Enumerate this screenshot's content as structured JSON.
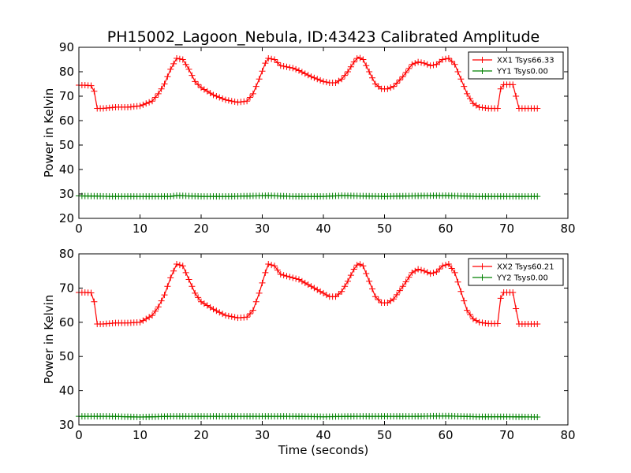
{
  "title": "PH15002_Lagoon_Nebula, ID:43423 Calibrated Amplitude",
  "colors": {
    "xx": "#ff0000",
    "yy": "#008000"
  },
  "chart_data": [
    {
      "type": "line",
      "xlabel": "",
      "ylabel": "Power in Kelvin",
      "xlim": [
        0,
        80
      ],
      "ylim": [
        20,
        90
      ],
      "xticks": [
        "0",
        "10",
        "20",
        "30",
        "40",
        "50",
        "60",
        "70",
        "80"
      ],
      "yticks": [
        "20",
        "30",
        "40",
        "50",
        "60",
        "70",
        "80",
        "90"
      ],
      "legend": "top-right",
      "grid": false,
      "marker": "+",
      "series": [
        {
          "name": "XX1 Tsys66.33",
          "color": "#ff0000",
          "points": [
            [
              0,
              74.5
            ],
            [
              1,
              74.5
            ],
            [
              2,
              74.3
            ],
            [
              2.5,
              72
            ],
            [
              3,
              65
            ],
            [
              4,
              65
            ],
            [
              6,
              65.5
            ],
            [
              8,
              65.5
            ],
            [
              10,
              66
            ],
            [
              12,
              68
            ],
            [
              13,
              71
            ],
            [
              14,
              75
            ],
            [
              15,
              81
            ],
            [
              16,
              85.5
            ],
            [
              17,
              85
            ],
            [
              18,
              81
            ],
            [
              19,
              76
            ],
            [
              20,
              73.5
            ],
            [
              22,
              70.5
            ],
            [
              24,
              68.5
            ],
            [
              26,
              67.5
            ],
            [
              27.5,
              68
            ],
            [
              28.5,
              71
            ],
            [
              29.5,
              77
            ],
            [
              30.5,
              83.5
            ],
            [
              31,
              85.5
            ],
            [
              32,
              85
            ],
            [
              33,
              82.5
            ],
            [
              35,
              81.5
            ],
            [
              36,
              80.5
            ],
            [
              38,
              78
            ],
            [
              40,
              76
            ],
            [
              41,
              75.5
            ],
            [
              42,
              75.5
            ],
            [
              43,
              77
            ],
            [
              44,
              80
            ],
            [
              45,
              84
            ],
            [
              45.7,
              86
            ],
            [
              46.5,
              85
            ],
            [
              47.5,
              80
            ],
            [
              48.5,
              75
            ],
            [
              49.5,
              73
            ],
            [
              50.5,
              73
            ],
            [
              51.5,
              74
            ],
            [
              53,
              78
            ],
            [
              54.5,
              83
            ],
            [
              55.5,
              84
            ],
            [
              56.5,
              83.5
            ],
            [
              57.5,
              82.5
            ],
            [
              58.5,
              83
            ],
            [
              59.5,
              85
            ],
            [
              60.5,
              85.5
            ],
            [
              61.5,
              83
            ],
            [
              62.5,
              77
            ],
            [
              63.5,
              71
            ],
            [
              64.5,
              67
            ],
            [
              65.5,
              65.5
            ],
            [
              67,
              65
            ],
            [
              68.5,
              65
            ],
            [
              69,
              73
            ],
            [
              69.5,
              74.7
            ],
            [
              71,
              74.7
            ],
            [
              71.5,
              70
            ],
            [
              72,
              65
            ],
            [
              73,
              65
            ],
            [
              75,
              65
            ]
          ]
        },
        {
          "name": "YY1 Tsys0.00",
          "color": "#008000",
          "points": [
            [
              0,
              29.2
            ],
            [
              5,
              29
            ],
            [
              10,
              29
            ],
            [
              15,
              29
            ],
            [
              16,
              29.3
            ],
            [
              20,
              29
            ],
            [
              25,
              29
            ],
            [
              31,
              29.3
            ],
            [
              35,
              29
            ],
            [
              40,
              29
            ],
            [
              43,
              29.3
            ],
            [
              45,
              29.2
            ],
            [
              50,
              29
            ],
            [
              55,
              29.2
            ],
            [
              60,
              29.3
            ],
            [
              65,
              29
            ],
            [
              70,
              29
            ],
            [
              75,
              29
            ]
          ]
        }
      ]
    },
    {
      "type": "line",
      "xlabel": "Time (seconds)",
      "ylabel": "Power in Kelvin",
      "xlim": [
        0,
        80
      ],
      "ylim": [
        30,
        80
      ],
      "xticks": [
        "0",
        "10",
        "20",
        "30",
        "40",
        "50",
        "60",
        "70",
        "80"
      ],
      "yticks": [
        "30",
        "40",
        "50",
        "60",
        "70",
        "80"
      ],
      "legend": "top-right",
      "grid": false,
      "marker": "+",
      "series": [
        {
          "name": "XX2 Tsys60.21",
          "color": "#ff0000",
          "points": [
            [
              0,
              68.7
            ],
            [
              1,
              68.7
            ],
            [
              2,
              68.6
            ],
            [
              2.5,
              66
            ],
            [
              3,
              59.5
            ],
            [
              4,
              59.5
            ],
            [
              6,
              59.8
            ],
            [
              8,
              59.8
            ],
            [
              10,
              60
            ],
            [
              12,
              62
            ],
            [
              13,
              64.5
            ],
            [
              14,
              68
            ],
            [
              15,
              73
            ],
            [
              16,
              77
            ],
            [
              17,
              76.5
            ],
            [
              18,
              72.5
            ],
            [
              19,
              68.5
            ],
            [
              20,
              66
            ],
            [
              22,
              63.8
            ],
            [
              24,
              62
            ],
            [
              26,
              61.3
            ],
            [
              27.5,
              61.5
            ],
            [
              28.5,
              63.5
            ],
            [
              29.5,
              68.5
            ],
            [
              30.5,
              74.5
            ],
            [
              31,
              77
            ],
            [
              32,
              76.5
            ],
            [
              33,
              74
            ],
            [
              35,
              73
            ],
            [
              36,
              72.5
            ],
            [
              38,
              70.5
            ],
            [
              40,
              68.5
            ],
            [
              41,
              67.5
            ],
            [
              42,
              67.5
            ],
            [
              43,
              69
            ],
            [
              44,
              72
            ],
            [
              45,
              75.5
            ],
            [
              45.7,
              77.2
            ],
            [
              46.5,
              76.5
            ],
            [
              47.5,
              72
            ],
            [
              48.5,
              67.5
            ],
            [
              49.5,
              65.7
            ],
            [
              50.5,
              65.7
            ],
            [
              51.5,
              66.8
            ],
            [
              53,
              70.5
            ],
            [
              54.5,
              74.5
            ],
            [
              55.5,
              75.5
            ],
            [
              56.5,
              75
            ],
            [
              57.5,
              74.2
            ],
            [
              58.5,
              74.7
            ],
            [
              59.5,
              76.5
            ],
            [
              60.5,
              77
            ],
            [
              61.5,
              74.5
            ],
            [
              62.5,
              69
            ],
            [
              63.5,
              63.5
            ],
            [
              64.5,
              61
            ],
            [
              65.5,
              60
            ],
            [
              67,
              59.6
            ],
            [
              68.5,
              59.6
            ],
            [
              69,
              67
            ],
            [
              69.5,
              68.7
            ],
            [
              71,
              68.7
            ],
            [
              71.5,
              64
            ],
            [
              72,
              59.5
            ],
            [
              73,
              59.5
            ],
            [
              75,
              59.5
            ]
          ]
        },
        {
          "name": "YY2 Tsys0.00",
          "color": "#008000",
          "points": [
            [
              0,
              32.5
            ],
            [
              5,
              32.5
            ],
            [
              10,
              32.3
            ],
            [
              15,
              32.5
            ],
            [
              20,
              32.5
            ],
            [
              25,
              32.5
            ],
            [
              30,
              32.5
            ],
            [
              35,
              32.5
            ],
            [
              40,
              32.4
            ],
            [
              45,
              32.5
            ],
            [
              50,
              32.5
            ],
            [
              55,
              32.5
            ],
            [
              60,
              32.6
            ],
            [
              65,
              32.4
            ],
            [
              70,
              32.4
            ],
            [
              75,
              32.3
            ]
          ]
        }
      ]
    }
  ]
}
